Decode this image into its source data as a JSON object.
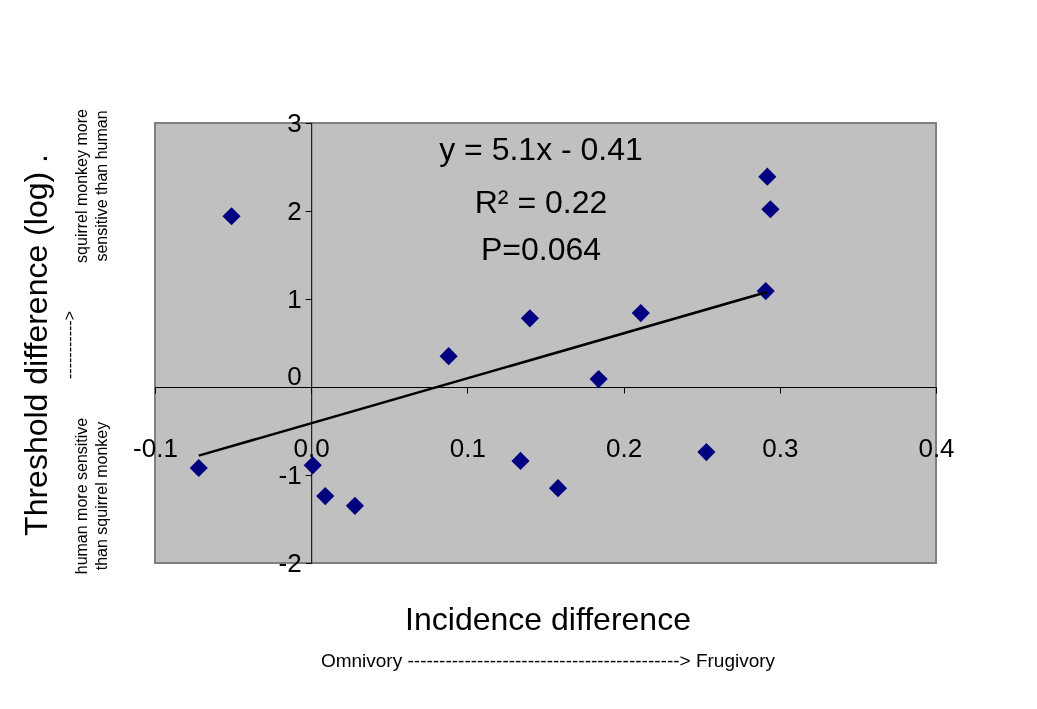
{
  "chart_data": {
    "type": "scatter",
    "xlabel": "Incidence difference",
    "ylabel": "Threshold difference (log)  .",
    "xlim": [
      -0.1,
      0.4
    ],
    "xticks": [
      {
        "value": -0.1,
        "label": "-0.1"
      },
      {
        "value": 0,
        "label": "0.0"
      },
      {
        "value": 0.1,
        "label": "0.1"
      },
      {
        "value": 0.2,
        "label": "0.2"
      },
      {
        "value": 0.3,
        "label": "0.3"
      },
      {
        "value": 0.4,
        "label": "0.4"
      }
    ],
    "ylim": [
      -2,
      3
    ],
    "yticks": [
      -2,
      -1,
      0,
      1,
      2,
      3
    ],
    "series": [
      {
        "color": "#000080",
        "marker": "diamond",
        "x": [
          -0.072,
          -0.051,
          0.001,
          0.009,
          0.028,
          0.088,
          0.134,
          0.14,
          0.158,
          0.184,
          0.211,
          0.253,
          0.292,
          0.294,
          0.291
        ],
        "values": [
          -0.92,
          1.94,
          -0.89,
          -1.24,
          -1.35,
          0.35,
          -0.84,
          0.78,
          -1.15,
          0.09,
          0.84,
          -0.74,
          2.39,
          2.02,
          1.09
        ]
      },
      {
        "type": "line",
        "color": "#000000",
        "x": [
          -0.072,
          0.292
        ],
        "values": [
          -0.78,
          1.08
        ]
      }
    ],
    "annotations": [
      "y = 5.1x - 0.41",
      "R² = 0.22",
      "P=0.064",
      "human more sensitive than squirrel monkey",
      "----------->",
      "squirrel monkey more sensitive than human",
      "Omnivory -------------------------------------------> Frugivory"
    ]
  }
}
